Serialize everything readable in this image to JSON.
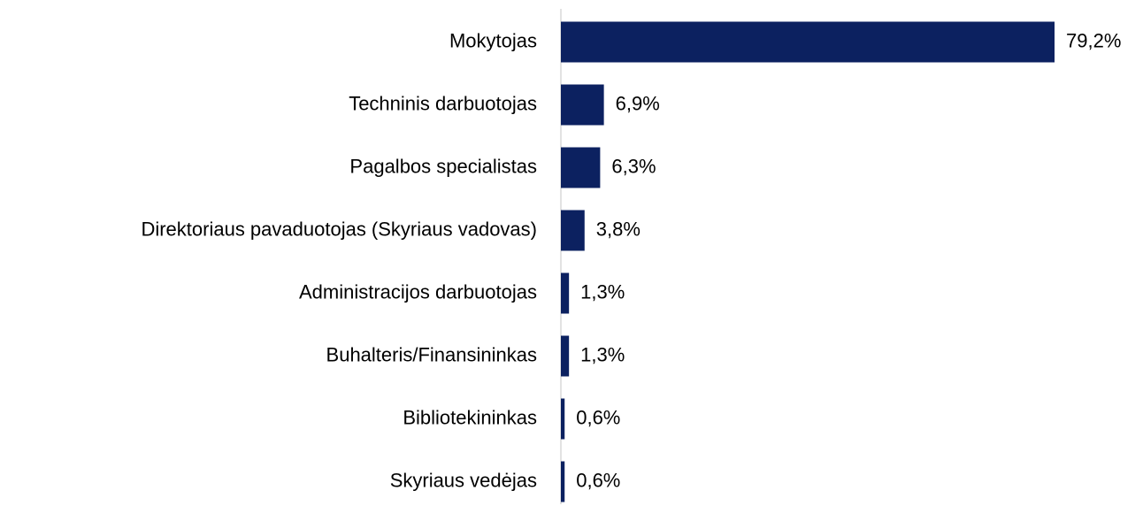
{
  "chart_data": {
    "type": "bar",
    "orientation": "horizontal",
    "categories": [
      "Mokytojas",
      "Techninis darbuotojas",
      "Pagalbos specialistas",
      "Direktoriaus pavaduotojas (Skyriaus vadovas)",
      "Administracijos darbuotojas",
      "Buhalteris/Finansininkas",
      "Bibliotekininkas",
      "Skyriaus vedėjas"
    ],
    "values": [
      79.2,
      6.9,
      6.3,
      3.8,
      1.3,
      1.3,
      0.6,
      0.6
    ],
    "value_labels": [
      "79,2%",
      "6,9%",
      "6,3%",
      "3,8%",
      "1,3%",
      "1,3%",
      "0,6%",
      "0,6%"
    ],
    "color": "#0c2160"
  }
}
